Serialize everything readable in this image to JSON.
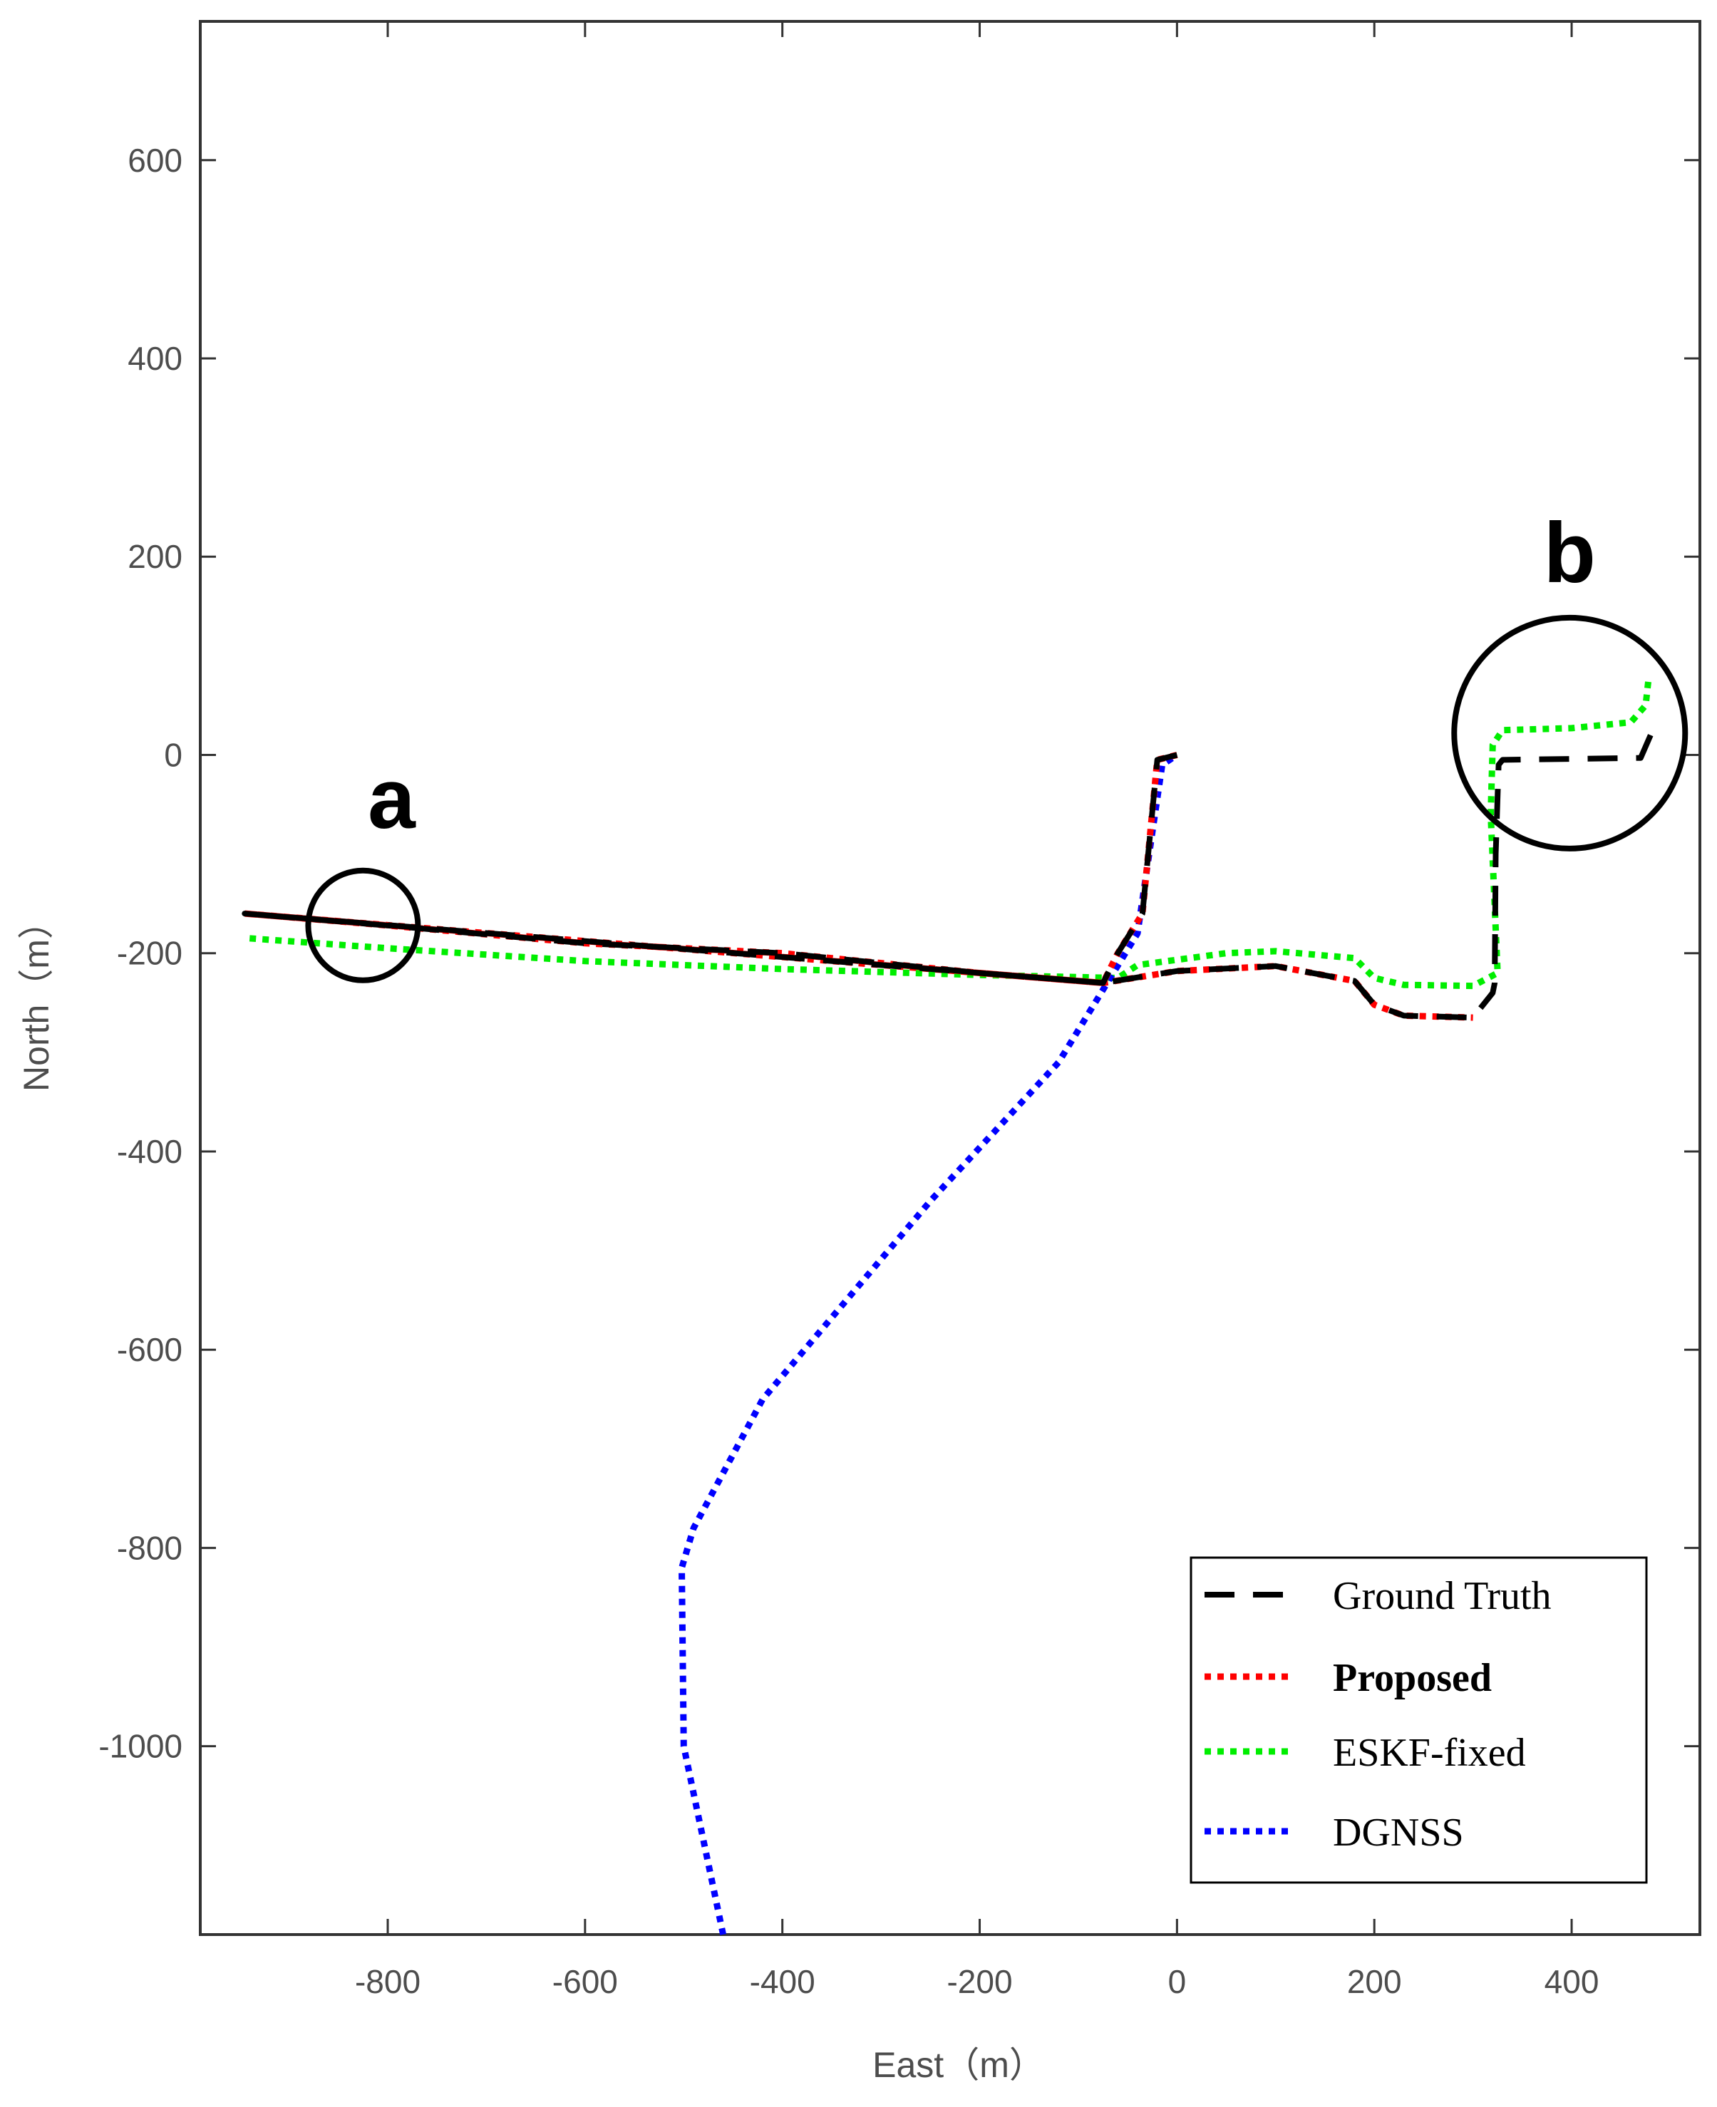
{
  "chart_data": {
    "type": "line",
    "title": "",
    "xlabel": "East（m）",
    "ylabel": "North（m）",
    "xlim": [
      -990,
      530
    ],
    "ylim": [
      -1190,
      740
    ],
    "xticks": [
      -800,
      -600,
      -400,
      -200,
      0,
      200,
      400
    ],
    "yticks": [
      600,
      400,
      200,
      0,
      -200,
      -400,
      -600,
      -800,
      -1000
    ],
    "xtick_labels": [
      "-800",
      "-600",
      "-400",
      "-200",
      "0",
      "200",
      "400"
    ],
    "ytick_labels": [
      "600",
      "400",
      "200",
      "0",
      "-200",
      "-400",
      "-600",
      "-800",
      "-1000"
    ],
    "grid": false,
    "legend_position": "bottom-right",
    "series": [
      {
        "name": "Ground Truth",
        "color": "#000000",
        "style": "dashed",
        "points": [
          [
            0,
            0
          ],
          [
            -20,
            -5
          ],
          [
            -35,
            -160
          ],
          [
            -60,
            -200
          ],
          [
            -75,
            -230
          ],
          [
            -200,
            -220
          ],
          [
            -400,
            -200
          ],
          [
            -600,
            -190
          ],
          [
            -800,
            -172
          ],
          [
            -945,
            -160
          ],
          [
            -75,
            -230
          ],
          [
            0,
            -218
          ],
          [
            100,
            -213
          ],
          [
            180,
            -228
          ],
          [
            200,
            -252
          ],
          [
            230,
            -263
          ],
          [
            300,
            -265
          ],
          [
            320,
            -240
          ],
          [
            322,
            -230
          ],
          [
            323,
            -100
          ],
          [
            326,
            -10
          ],
          [
            330,
            -5
          ],
          [
            470,
            -3
          ],
          [
            480,
            20
          ]
        ]
      },
      {
        "name": "Proposed",
        "color": "#ff0000",
        "style": "dotted",
        "bold_label": true,
        "points": [
          [
            0,
            0
          ],
          [
            -20,
            -5
          ],
          [
            -35,
            -160
          ],
          [
            -60,
            -200
          ],
          [
            -75,
            -230
          ],
          [
            -200,
            -220
          ],
          [
            -400,
            -200
          ],
          [
            -600,
            -190
          ],
          [
            -800,
            -172
          ],
          [
            -945,
            -160
          ],
          [
            -75,
            -230
          ],
          [
            0,
            -218
          ],
          [
            100,
            -213
          ],
          [
            180,
            -228
          ],
          [
            200,
            -252
          ],
          [
            230,
            -263
          ],
          [
            300,
            -265
          ]
        ]
      },
      {
        "name": "ESKF-fixed",
        "color": "#00ee00",
        "style": "dotted",
        "points": [
          [
            -940,
            -185
          ],
          [
            -800,
            -195
          ],
          [
            -600,
            -208
          ],
          [
            -400,
            -216
          ],
          [
            -200,
            -222
          ],
          [
            -60,
            -225
          ],
          [
            -40,
            -212
          ],
          [
            50,
            -200
          ],
          [
            100,
            -198
          ],
          [
            180,
            -205
          ],
          [
            200,
            -225
          ],
          [
            230,
            -232
          ],
          [
            300,
            -233
          ],
          [
            325,
            -220
          ],
          [
            318,
            -60
          ],
          [
            320,
            10
          ],
          [
            330,
            25
          ],
          [
            400,
            27
          ],
          [
            460,
            33
          ],
          [
            475,
            50
          ],
          [
            478,
            77
          ]
        ]
      },
      {
        "name": "DGNSS",
        "color": "#0000ff",
        "style": "dotted",
        "points": [
          [
            -460,
            -1190
          ],
          [
            -500,
            -1000
          ],
          [
            -502,
            -820
          ],
          [
            -490,
            -780
          ],
          [
            -420,
            -650
          ],
          [
            -250,
            -450
          ],
          [
            -120,
            -310
          ],
          [
            -40,
            -180
          ],
          [
            -15,
            -10
          ],
          [
            0,
            0
          ]
        ]
      }
    ],
    "annotations": [
      {
        "label": "a",
        "x": -825,
        "y": -172
      },
      {
        "label": "b",
        "x": 398,
        "y": 22
      }
    ]
  }
}
